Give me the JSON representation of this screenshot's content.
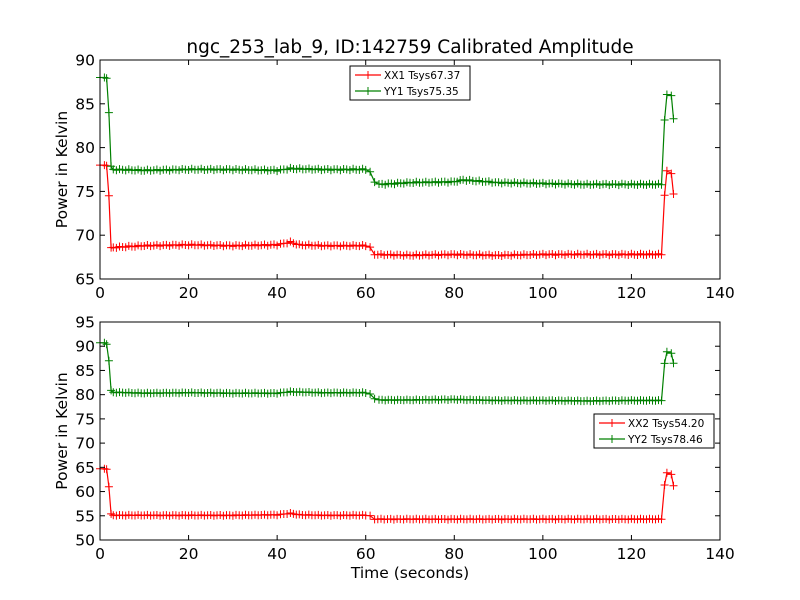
{
  "figure": {
    "title": "ngc_253_lab_9, ID:142759 Calibrated Amplitude"
  },
  "chart_data": [
    {
      "type": "line",
      "id": "top",
      "ylabel": "Power in Kelvin",
      "xlabel": "",
      "xlim": [
        0,
        140
      ],
      "ylim": [
        65,
        90
      ],
      "xticks": [
        0,
        20,
        40,
        60,
        80,
        100,
        120,
        140
      ],
      "yticks": [
        65,
        70,
        75,
        80,
        85,
        90
      ],
      "legend_position": "upper-center",
      "series": [
        {
          "name": "XX1 Tsys67.37",
          "color": "#ff0000",
          "points": [
            [
              0,
              78
            ],
            [
              1,
              78
            ],
            [
              1.5,
              78
            ],
            [
              2,
              74.5
            ],
            [
              2.5,
              68.5
            ],
            [
              3,
              68.6
            ],
            [
              10,
              68.8
            ],
            [
              20,
              68.9
            ],
            [
              30,
              68.8
            ],
            [
              40,
              68.9
            ],
            [
              43,
              69.2
            ],
            [
              45,
              68.9
            ],
            [
              50,
              68.8
            ],
            [
              55,
              68.8
            ],
            [
              60,
              68.8
            ],
            [
              61,
              68.6
            ],
            [
              62,
              67.8
            ],
            [
              70,
              67.7
            ],
            [
              80,
              67.8
            ],
            [
              90,
              67.7
            ],
            [
              100,
              67.8
            ],
            [
              110,
              67.8
            ],
            [
              120,
              67.8
            ],
            [
              126.8,
              67.8
            ],
            [
              127.5,
              74.6
            ],
            [
              128,
              77.3
            ],
            [
              129,
              77.1
            ],
            [
              129.5,
              74.7
            ]
          ]
        },
        {
          "name": "YY1 Tsys75.35",
          "color": "#008000",
          "points": [
            [
              0,
              88
            ],
            [
              1,
              88
            ],
            [
              1.5,
              88
            ],
            [
              2,
              84
            ],
            [
              2.5,
              77.8
            ],
            [
              3,
              77.5
            ],
            [
              10,
              77.4
            ],
            [
              20,
              77.5
            ],
            [
              30,
              77.5
            ],
            [
              40,
              77.4
            ],
            [
              43,
              77.6
            ],
            [
              50,
              77.5
            ],
            [
              60,
              77.5
            ],
            [
              61,
              77.2
            ],
            [
              62,
              76.1
            ],
            [
              63,
              75.8
            ],
            [
              70,
              76
            ],
            [
              80,
              76.1
            ],
            [
              82,
              76.3
            ],
            [
              90,
              76
            ],
            [
              100,
              75.9
            ],
            [
              110,
              75.8
            ],
            [
              120,
              75.8
            ],
            [
              126.8,
              75.8
            ],
            [
              127.5,
              83.2
            ],
            [
              128,
              86
            ],
            [
              129,
              86
            ],
            [
              129.5,
              83.3
            ]
          ]
        }
      ]
    },
    {
      "type": "line",
      "id": "bottom",
      "ylabel": "Power in Kelvin",
      "xlabel": "Time (seconds)",
      "xlim": [
        0,
        140
      ],
      "ylim": [
        50,
        95
      ],
      "xticks": [
        0,
        20,
        40,
        60,
        80,
        100,
        120,
        140
      ],
      "yticks": [
        50,
        55,
        60,
        65,
        70,
        75,
        80,
        85,
        90,
        95
      ],
      "legend_position": "center-right",
      "series": [
        {
          "name": "XX2 Tsys54.20",
          "color": "#ff0000",
          "points": [
            [
              0,
              64.7
            ],
            [
              1,
              64.7
            ],
            [
              1.5,
              64.7
            ],
            [
              2,
              61
            ],
            [
              2.5,
              55.3
            ],
            [
              3,
              55.1
            ],
            [
              10,
              55.1
            ],
            [
              20,
              55.1
            ],
            [
              30,
              55.1
            ],
            [
              40,
              55.2
            ],
            [
              43,
              55.5
            ],
            [
              45,
              55.2
            ],
            [
              50,
              55.1
            ],
            [
              55,
              55.1
            ],
            [
              60,
              55.1
            ],
            [
              61,
              55
            ],
            [
              62,
              54.3
            ],
            [
              70,
              54.3
            ],
            [
              80,
              54.3
            ],
            [
              90,
              54.3
            ],
            [
              100,
              54.3
            ],
            [
              110,
              54.3
            ],
            [
              120,
              54.3
            ],
            [
              126.8,
              54.3
            ],
            [
              127.5,
              61.4
            ],
            [
              128,
              63.8
            ],
            [
              129,
              63.6
            ],
            [
              129.5,
              61.2
            ]
          ]
        },
        {
          "name": "YY2 Tsys78.46",
          "color": "#008000",
          "points": [
            [
              0,
              90.7
            ],
            [
              1,
              90.7
            ],
            [
              1.5,
              90.5
            ],
            [
              2,
              87
            ],
            [
              2.5,
              80.8
            ],
            [
              3,
              80.5
            ],
            [
              10,
              80.3
            ],
            [
              20,
              80.4
            ],
            [
              30,
              80.3
            ],
            [
              40,
              80.3
            ],
            [
              43,
              80.6
            ],
            [
              50,
              80.4
            ],
            [
              60,
              80.4
            ],
            [
              61,
              80.1
            ],
            [
              62,
              79.2
            ],
            [
              63,
              78.9
            ],
            [
              70,
              78.9
            ],
            [
              80,
              79
            ],
            [
              90,
              78.8
            ],
            [
              100,
              78.8
            ],
            [
              110,
              78.7
            ],
            [
              120,
              78.8
            ],
            [
              126.8,
              78.8
            ],
            [
              127.5,
              86.5
            ],
            [
              128,
              88.8
            ],
            [
              129,
              88.6
            ],
            [
              129.5,
              86.5
            ]
          ]
        }
      ]
    }
  ]
}
